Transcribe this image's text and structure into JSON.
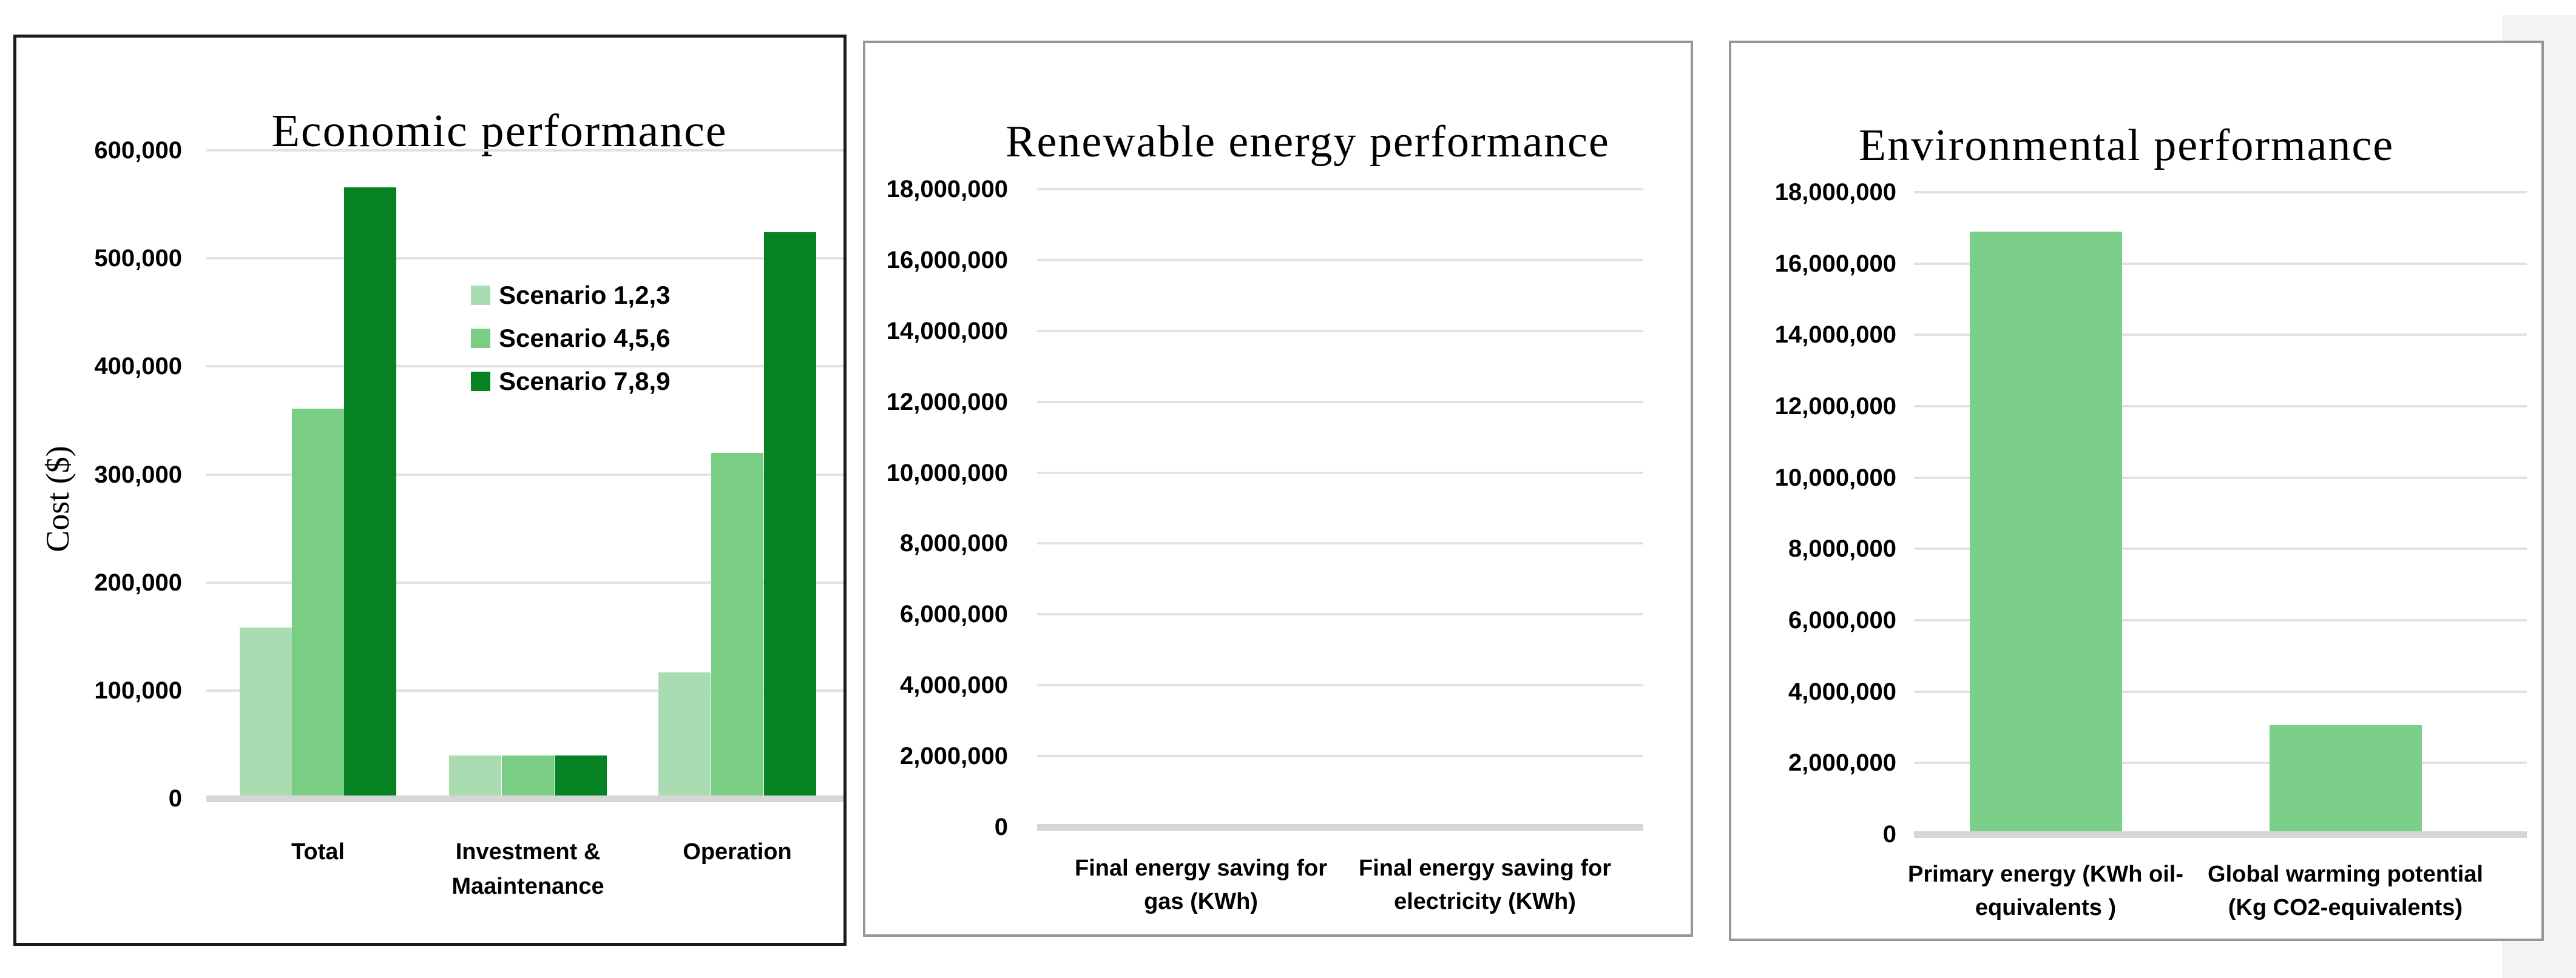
{
  "figure": {
    "background_color": "#ffffff",
    "page_edge_strip_color": "#f4f4f6",
    "panel_border_colors": {
      "economic": "#1a1a1a",
      "renewable": "#969696",
      "environmental": "#969696"
    }
  },
  "chart_data": [
    {
      "type": "bar",
      "title": "Economic performance",
      "xlabel": "",
      "ylabel": "Cost ($)",
      "ylim": [
        0,
        600000
      ],
      "ytick_step": 100000,
      "grid": true,
      "legend": true,
      "legend_position": "upper-center-right",
      "categories": [
        [
          "Total"
        ],
        [
          "Investment &",
          "Maaintenance"
        ],
        [
          "Operation"
        ]
      ],
      "series": [
        {
          "name": "Scenario 1,2,3",
          "color": "#a9dcb0",
          "values": [
            158000,
            40000,
            117000
          ]
        },
        {
          "name": "Scenario 4,5,6",
          "color": "#79ce84",
          "values": [
            361000,
            40000,
            320000
          ]
        },
        {
          "name": "Scenario 7,8,9",
          "color": "#078222",
          "values": [
            566000,
            40000,
            524000
          ]
        }
      ]
    },
    {
      "type": "bar",
      "title": "Renewable energy performance",
      "xlabel": "",
      "ylabel": "",
      "ylim": [
        0,
        18000000
      ],
      "ytick_step": 2000000,
      "grid": true,
      "legend": false,
      "categories": [
        [
          "Final energy saving for",
          "gas (KWh)"
        ],
        [
          "Final energy saving for",
          "electricity (KWh)"
        ]
      ],
      "series": [
        {
          "name": "",
          "color": "#7ccf88",
          "values": [
            0,
            0
          ]
        }
      ]
    },
    {
      "type": "bar",
      "title": "Environmental performance",
      "xlabel": "",
      "ylabel": "",
      "ylim": [
        0,
        18000000
      ],
      "ytick_step": 2000000,
      "grid": true,
      "legend": false,
      "categories": [
        [
          "Primary energy (KWh oil-",
          "equivalents )"
        ],
        [
          "Global warming potential",
          "(Kg CO2-equivalents)"
        ]
      ],
      "series": [
        {
          "name": "",
          "color": "#7ccf88",
          "values": [
            16900000,
            3060000
          ]
        }
      ]
    }
  ]
}
